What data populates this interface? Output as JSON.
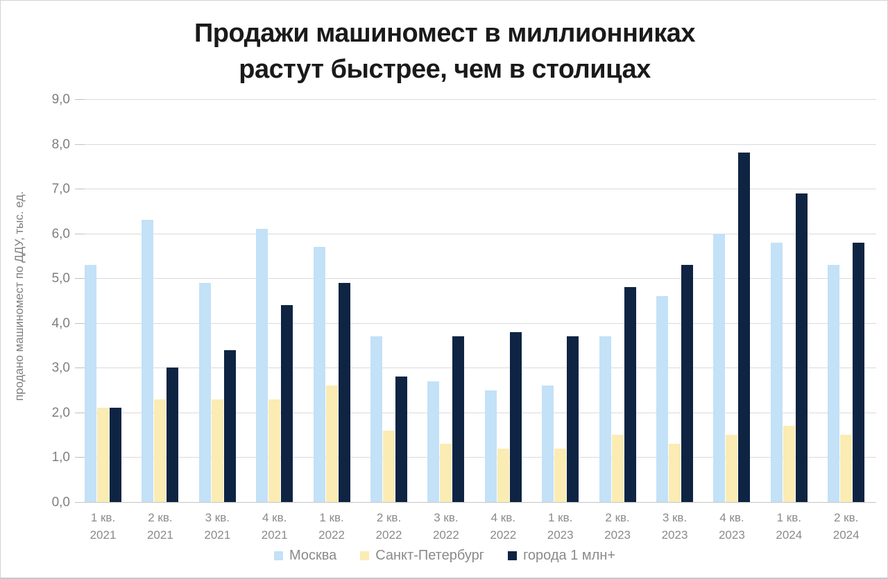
{
  "title": {
    "line1": "Продажи машиномест в миллионниках",
    "line2": "растут быстрее, чем в столицах"
  },
  "chart_data": {
    "type": "bar",
    "title": "Продажи машиномест в миллионниках растут быстрее, чем в столицах",
    "xlabel": "",
    "ylabel": "продано машиномест по ДДУ, тыс. ед.",
    "ylim": [
      0,
      9
    ],
    "ytick_step": 1,
    "ytick_labels": [
      "0,0",
      "1,0",
      "2,0",
      "3,0",
      "4,0",
      "5,0",
      "6,0",
      "7,0",
      "8,0",
      "9,0"
    ],
    "grid": true,
    "legend_position": "bottom",
    "categories": [
      [
        "1 кв.",
        "2021"
      ],
      [
        "2 кв.",
        "2021"
      ],
      [
        "3 кв.",
        "2021"
      ],
      [
        "4 кв.",
        "2021"
      ],
      [
        "1 кв.",
        "2022"
      ],
      [
        "2 кв.",
        "2022"
      ],
      [
        "3 кв.",
        "2022"
      ],
      [
        "4 кв.",
        "2022"
      ],
      [
        "1 кв.",
        "2023"
      ],
      [
        "2 кв.",
        "2023"
      ],
      [
        "3 кв.",
        "2023"
      ],
      [
        "4 кв.",
        "2023"
      ],
      [
        "1 кв.",
        "2024"
      ],
      [
        "2 кв.",
        "2024"
      ]
    ],
    "series": [
      {
        "name": "Москва",
        "color": "#C3E1F7",
        "values": [
          5.3,
          6.3,
          4.9,
          6.1,
          5.7,
          3.7,
          2.7,
          2.5,
          2.6,
          3.7,
          4.6,
          6.0,
          5.8,
          5.3
        ]
      },
      {
        "name": "Санкт-Петербург",
        "color": "#FBECB4",
        "values": [
          2.1,
          2.3,
          2.3,
          2.3,
          2.6,
          1.6,
          1.3,
          1.2,
          1.2,
          1.5,
          1.3,
          1.5,
          1.7,
          1.5
        ]
      },
      {
        "name": "города 1 млн+",
        "color": "#0E2442",
        "values": [
          2.1,
          3.0,
          3.4,
          4.4,
          4.9,
          2.8,
          3.7,
          3.8,
          3.7,
          4.8,
          5.3,
          7.8,
          6.9,
          5.8
        ]
      }
    ]
  },
  "colors": {
    "title_text": "#1a1a1a",
    "y_axis_text": "#7e7e7e",
    "x_axis_text": "#8a8a8a",
    "gridline": "#dadada",
    "baseline": "#c6c6c6",
    "background": "#ffffff",
    "frame_border": "#d2d2d2"
  }
}
